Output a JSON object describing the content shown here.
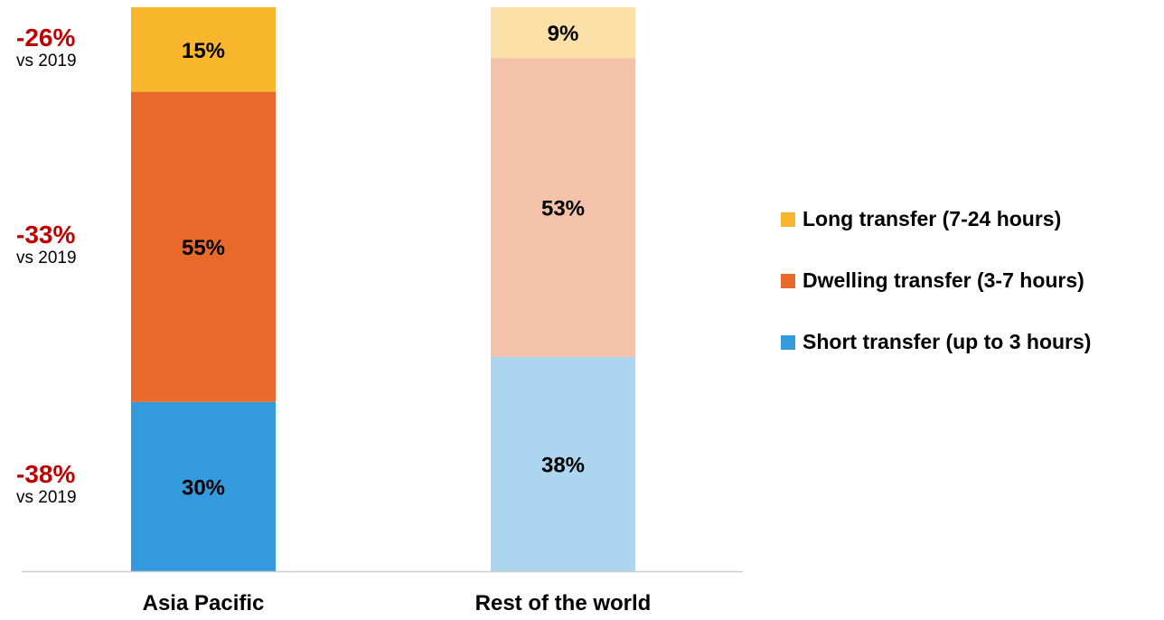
{
  "chart_data": {
    "type": "bar",
    "stacked": true,
    "normalized_100": true,
    "categories": [
      "Asia Pacific",
      "Rest of the world"
    ],
    "series": [
      {
        "name": "Short transfer (up to 3 hours)",
        "values": [
          30,
          38
        ],
        "labels": [
          "30%",
          "38%"
        ],
        "colors": [
          "#339ade",
          "#acd6f0"
        ]
      },
      {
        "name": "Dwelling transfer (3-7 hours)",
        "values": [
          55,
          53
        ],
        "labels": [
          "55%",
          "53%"
        ],
        "colors": [
          "#e8692a",
          "#f4c2aa"
        ]
      },
      {
        "name": "Long transfer (7-24 hours)",
        "values": [
          15,
          9
        ],
        "labels": [
          "15%",
          "9%"
        ],
        "colors": [
          "#f8b62c",
          "#fbe0a8"
        ]
      }
    ],
    "legend": {
      "position": "right",
      "order": [
        "Long transfer (7-24 hours)",
        "Dwelling transfer (3-7 hours)",
        "Short transfer (up to 3 hours)"
      ],
      "colors": [
        "#f8b62c",
        "#e8692a",
        "#339ade"
      ]
    },
    "annotations": [
      {
        "series": "Long transfer (7-24 hours)",
        "change": "-26%",
        "note": "vs 2019"
      },
      {
        "series": "Dwelling transfer (3-7 hours)",
        "change": "-33%",
        "note": "vs 2019"
      },
      {
        "series": "Short transfer (up to 3 hours)",
        "change": "-38%",
        "note": "vs 2019"
      }
    ],
    "ylim": [
      0,
      100
    ],
    "grid": false,
    "annotation_color": "#c00000",
    "axis_color": "#cccccc"
  }
}
